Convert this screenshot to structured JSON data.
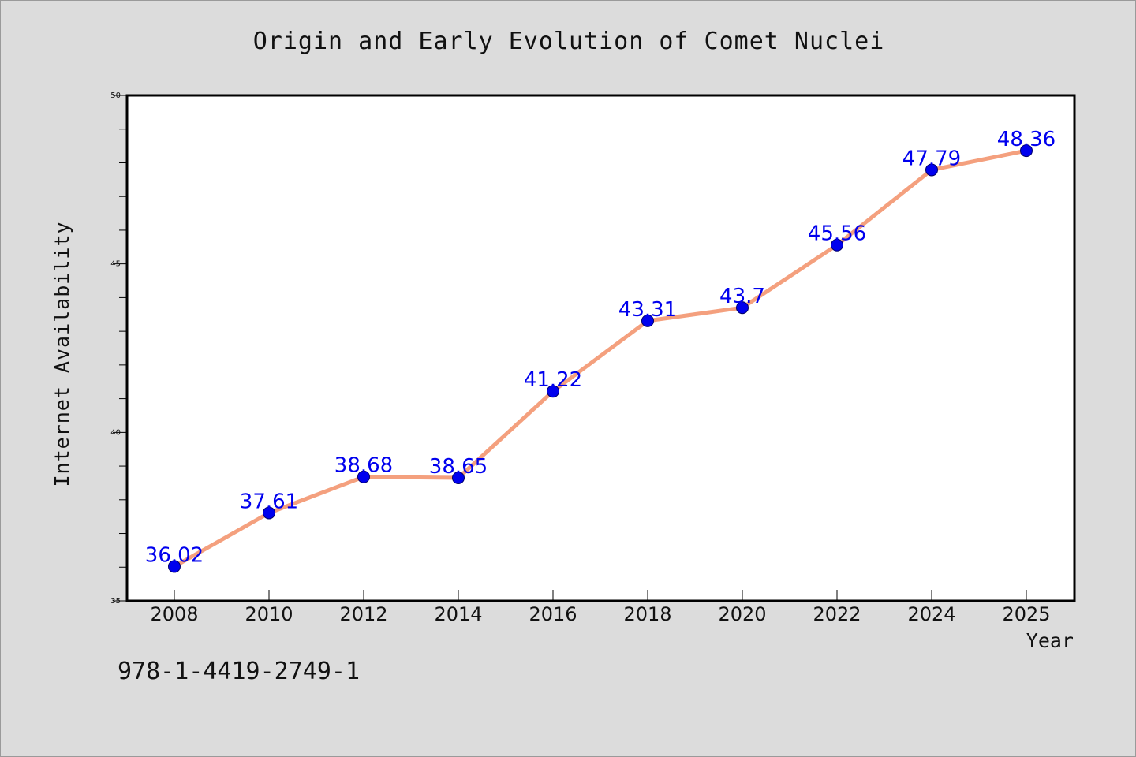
{
  "chart_data": {
    "type": "line",
    "title": "Origin and Early Evolution of Comet Nuclei",
    "xlabel": "Year",
    "ylabel": "Internet Availability",
    "categories": [
      "2008",
      "2010",
      "2012",
      "2014",
      "2016",
      "2018",
      "2020",
      "2022",
      "2024",
      "2025"
    ],
    "values": [
      36.02,
      37.61,
      38.68,
      38.65,
      41.22,
      43.31,
      43.7,
      45.56,
      47.79,
      48.36
    ],
    "data_labels": [
      "36.02",
      "37.61",
      "38.68",
      "38.65",
      "41.22",
      "43.31",
      "43.7",
      "45.56",
      "47.79",
      "48.36"
    ],
    "ylim": [
      35,
      50
    ],
    "yticks": [
      35,
      40,
      45,
      50
    ],
    "grid": false,
    "legend": "none",
    "colors": {
      "line": "#f4a07e",
      "marker": "#0000ee",
      "label": "#0000ee",
      "background": "#dcdcdc",
      "plot_background": "#ffffff"
    }
  },
  "footer": {
    "code": "978-1-4419-2749-1"
  }
}
